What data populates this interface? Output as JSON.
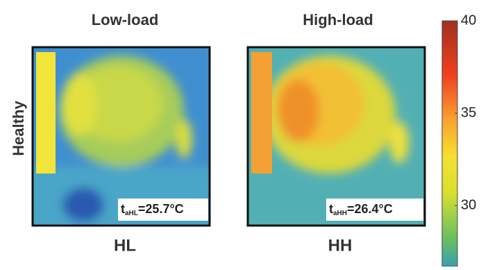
{
  "panels": [
    {
      "title": "Low-load",
      "label": "HL",
      "annotation": {
        "symbol": "t",
        "subscript": "aHL",
        "text": "=25.7°C"
      }
    },
    {
      "title": "High-load",
      "label": "HH",
      "annotation": {
        "symbol": "t",
        "subscript": "aHH",
        "text": "=26.4°C"
      }
    }
  ],
  "row_label": "Healthy",
  "colorbar": {
    "clim": [
      26.7,
      40
    ],
    "ticks": [
      30,
      35,
      40
    ]
  }
}
